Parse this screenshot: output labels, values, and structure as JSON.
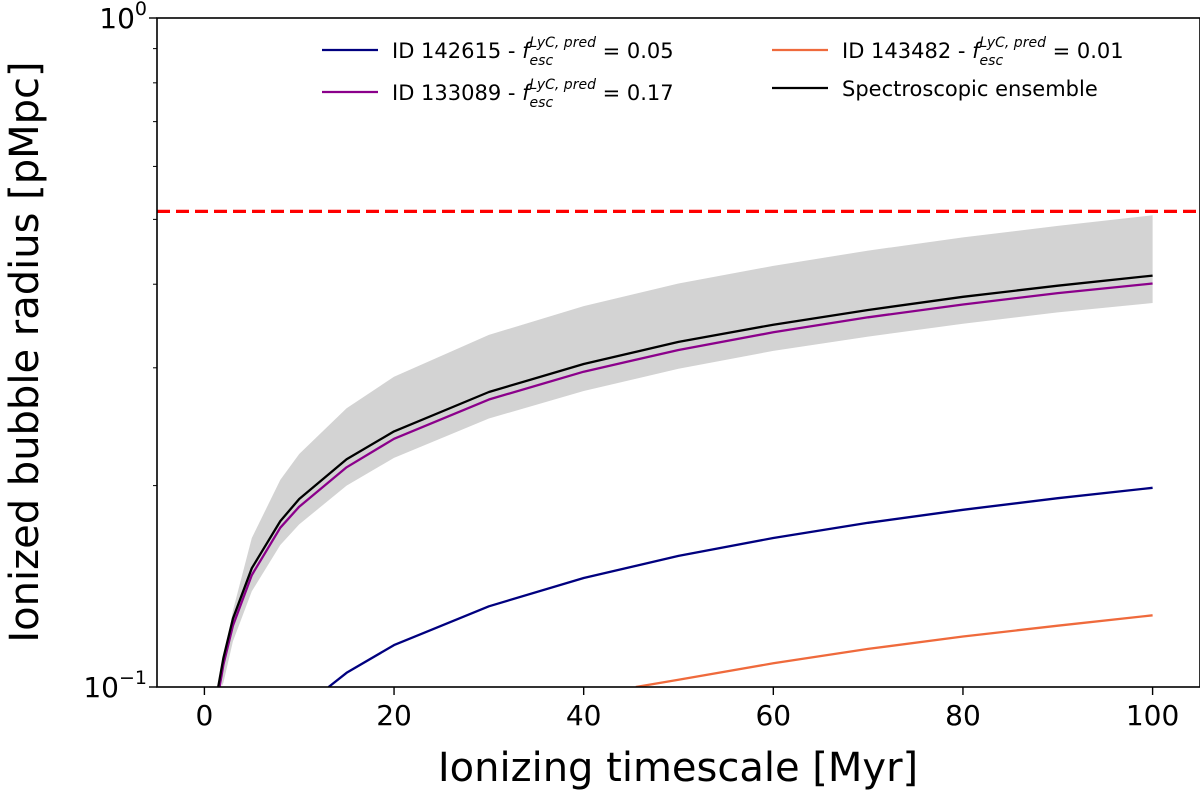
{
  "chart_data": {
    "type": "line",
    "xlabel": "Ionizing timescale [Myr]",
    "ylabel": "Ionized bubble radius [pMpc]",
    "yscale": "log",
    "xlim": [
      -5,
      105
    ],
    "ylim": [
      0.1,
      1.0
    ],
    "xticks": [
      0,
      20,
      40,
      60,
      80,
      100
    ],
    "yticks": [
      {
        "value": 0.1,
        "base": "10",
        "exp": "−1"
      },
      {
        "value": 1.0,
        "base": "10",
        "exp": "0"
      }
    ],
    "reference_line": {
      "y": 0.514,
      "style": "dashed",
      "color": "#ff0000"
    },
    "band": {
      "name": "Spectroscopic ensemble uncertainty",
      "color": "#d3d3d3",
      "x": [
        1.8,
        2,
        3,
        5,
        8,
        10,
        15,
        20,
        30,
        40,
        50,
        60,
        70,
        80,
        90,
        100
      ],
      "lower": [
        0.1,
        0.1015,
        0.117,
        0.139,
        0.163,
        0.175,
        0.2,
        0.22,
        0.252,
        0.277,
        0.299,
        0.318,
        0.334,
        0.349,
        0.363,
        0.375
      ],
      "upper": [
        0.1,
        0.108,
        0.13,
        0.167,
        0.204,
        0.223,
        0.261,
        0.291,
        0.336,
        0.371,
        0.401,
        0.426,
        0.449,
        0.47,
        0.489,
        0.507
      ]
    },
    "series": [
      {
        "name": "Spectroscopic ensemble",
        "color": "#000000",
        "x": [
          1.45,
          2,
          3,
          5,
          8,
          10,
          15,
          20,
          30,
          40,
          50,
          60,
          70,
          80,
          90,
          100
        ],
        "values": [
          0.1,
          0.1105,
          0.1265,
          0.1505,
          0.177,
          0.191,
          0.219,
          0.241,
          0.276,
          0.304,
          0.328,
          0.348,
          0.366,
          0.383,
          0.398,
          0.412
        ]
      },
      {
        "name": "ID 133089",
        "color": "#8b008b",
        "x": [
          1.6,
          2,
          3,
          5,
          8,
          10,
          15,
          20,
          30,
          40,
          50,
          60,
          70,
          80,
          90,
          100
        ],
        "values": [
          0.1,
          0.108,
          0.1235,
          0.147,
          0.173,
          0.186,
          0.213,
          0.235,
          0.269,
          0.296,
          0.319,
          0.339,
          0.357,
          0.373,
          0.388,
          0.401
        ]
      },
      {
        "name": "ID 142615",
        "color": "#00007f",
        "x": [
          13.1,
          15,
          20,
          30,
          40,
          50,
          60,
          70,
          80,
          90,
          100
        ],
        "values": [
          0.1,
          0.105,
          0.1155,
          0.132,
          0.1455,
          0.157,
          0.167,
          0.176,
          0.184,
          0.1915,
          0.1985
        ]
      },
      {
        "name": "ID 143482",
        "color": "#ef6a3c",
        "x": [
          45.5,
          50,
          60,
          70,
          80,
          90,
          100
        ],
        "values": [
          0.1,
          0.1025,
          0.1085,
          0.114,
          0.119,
          0.1235,
          0.128
        ]
      }
    ],
    "legend": {
      "placement": "top",
      "entries": [
        {
          "id": "ID 142615 - ",
          "f": "f",
          "sup": "LyC, pred",
          "sub": "esc",
          "eq": " = 0.05",
          "color": "#00007f"
        },
        {
          "id": "ID 143482 - ",
          "f": "f",
          "sup": "LyC, pred",
          "sub": "esc",
          "eq": " = 0.01",
          "color": "#ef6a3c"
        },
        {
          "id": "ID 133089 - ",
          "f": "f",
          "sup": "LyC, pred",
          "sub": "esc",
          "eq": " = 0.17",
          "color": "#8b008b"
        },
        {
          "label": "Spectroscopic ensemble",
          "color": "#000000"
        }
      ]
    }
  }
}
